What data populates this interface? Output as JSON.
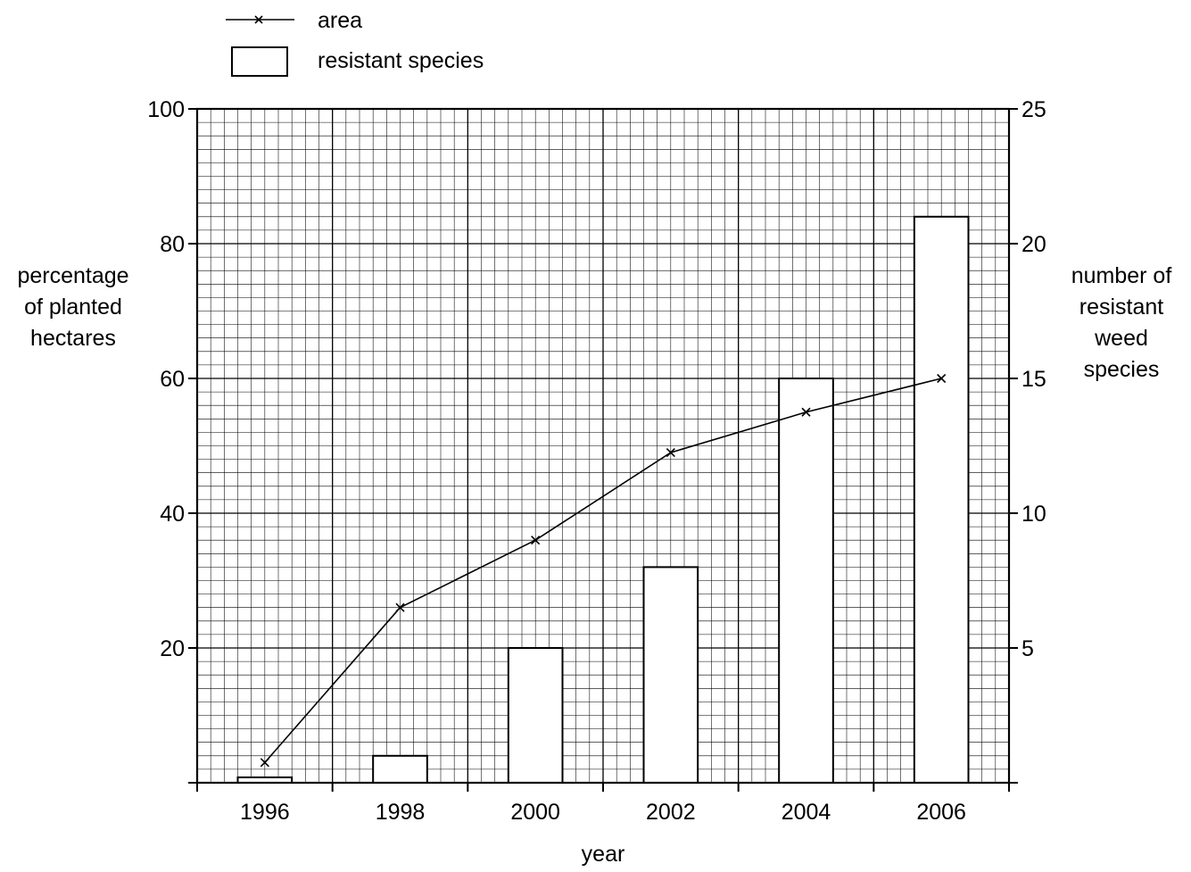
{
  "chart_data": {
    "type": "bar",
    "xlabel": "year",
    "ylabel_left_lines": [
      "percentage",
      "of planted",
      "hectares"
    ],
    "ylabel_right_lines": [
      "number of",
      "resistant",
      "weed",
      "species"
    ],
    "categories": [
      "1996",
      "1998",
      "2000",
      "2002",
      "2004",
      "2006"
    ],
    "ylim_left": [
      0,
      100
    ],
    "ylim_right": [
      0,
      25
    ],
    "yticks_left": [
      "20",
      "40",
      "60",
      "80",
      "100"
    ],
    "yticks_left_values": [
      20,
      40,
      60,
      80,
      100
    ],
    "yticks_right": [
      "5",
      "10",
      "15",
      "20",
      "25"
    ],
    "yticks_right_values": [
      5,
      10,
      15,
      20,
      25
    ],
    "grid": true,
    "legend_position": "top-left",
    "series": [
      {
        "name": "area",
        "kind": "line",
        "axis": "left",
        "marker": "x",
        "values": [
          3,
          26,
          36,
          49,
          55,
          60
        ]
      },
      {
        "name": "resistant species",
        "kind": "bar",
        "axis": "right",
        "values": [
          0.2,
          1,
          5,
          8,
          15,
          21
        ]
      }
    ]
  }
}
